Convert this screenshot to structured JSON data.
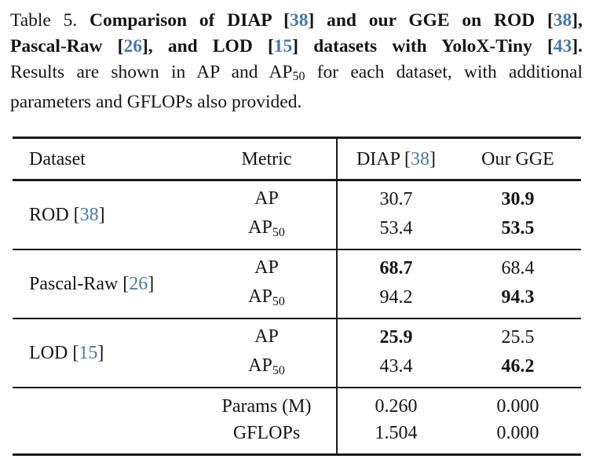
{
  "caption": {
    "lines": [
      [
        {
          "t": "Table 5. "
        },
        {
          "t": "Comparison of DIAP ",
          "s": "b"
        },
        {
          "t": "[",
          "s": "b"
        },
        {
          "t": "38",
          "s": "b cite"
        },
        {
          "t": "] and our GGE on ROD ",
          "s": "b"
        },
        {
          "t": "[",
          "s": "b"
        },
        {
          "t": "38",
          "s": "b cite"
        },
        {
          "t": "],",
          "s": "b"
        }
      ],
      [
        {
          "t": "Pascal-Raw ",
          "s": "b"
        },
        {
          "t": "[",
          "s": "b"
        },
        {
          "t": "26",
          "s": "b cite"
        },
        {
          "t": "], and LOD ",
          "s": "b"
        },
        {
          "t": "[",
          "s": "b"
        },
        {
          "t": "15",
          "s": "b cite"
        },
        {
          "t": "] datasets with YoloX-Tiny ",
          "s": "b"
        },
        {
          "t": "[",
          "s": "b"
        },
        {
          "t": "43",
          "s": "b cite"
        },
        {
          "t": "].",
          "s": "b"
        }
      ],
      [
        {
          "t": "Results are shown in AP and AP"
        },
        {
          "t": "50",
          "s": "sub"
        },
        {
          "t": " for each dataset, with additional"
        }
      ],
      [
        {
          "t": "parameters and GFLOPs also provided."
        }
      ]
    ]
  },
  "table": {
    "header": {
      "dataset": "Dataset",
      "metric": "Metric",
      "diap_pre": "DIAP [",
      "diap_cite": "38",
      "diap_post": "]",
      "gge": "Our GGE"
    },
    "groups": [
      {
        "dataset": {
          "pre": "ROD [",
          "cite": "38",
          "post": "]"
        },
        "rows": [
          {
            "metric": "AP",
            "metric_sub": "",
            "diap": "30.7",
            "gge": "30.9",
            "best": "gge"
          },
          {
            "metric": "AP",
            "metric_sub": "50",
            "diap": "53.4",
            "gge": "53.5",
            "best": "gge"
          }
        ]
      },
      {
        "dataset": {
          "pre": "Pascal-Raw [",
          "cite": "26",
          "post": "]"
        },
        "rows": [
          {
            "metric": "AP",
            "metric_sub": "",
            "diap": "68.7",
            "gge": "68.4",
            "best": "diap"
          },
          {
            "metric": "AP",
            "metric_sub": "50",
            "diap": "94.2",
            "gge": "94.3",
            "best": "gge"
          }
        ]
      },
      {
        "dataset": {
          "pre": "LOD [",
          "cite": "15",
          "post": "]"
        },
        "rows": [
          {
            "metric": "AP",
            "metric_sub": "",
            "diap": "25.9",
            "gge": "25.5",
            "best": "diap"
          },
          {
            "metric": "AP",
            "metric_sub": "50",
            "diap": "43.4",
            "gge": "46.2",
            "best": "gge"
          }
        ]
      }
    ],
    "footer_rows": [
      {
        "metric": "Params (M)",
        "diap": "0.260",
        "gge": "0.000"
      },
      {
        "metric": "GFLOPs",
        "diap": "1.504",
        "gge": "0.000"
      }
    ]
  },
  "colors": {
    "citation": "#4878a8",
    "text": "#151515",
    "rule": "#1a1a1a",
    "background": "#ffffff"
  }
}
